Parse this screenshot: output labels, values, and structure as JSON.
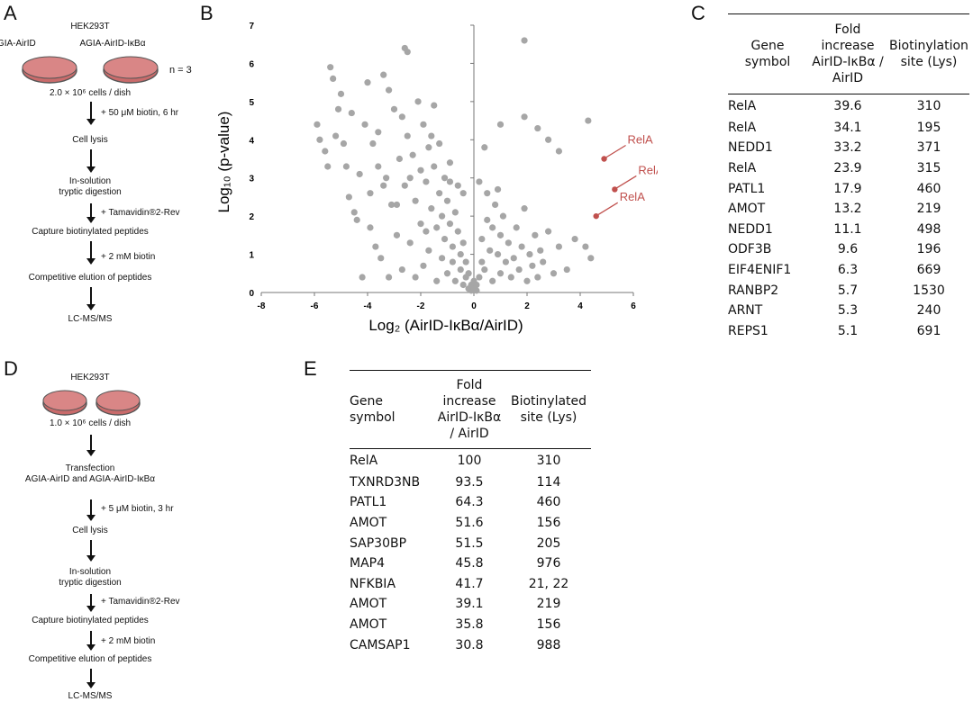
{
  "panels": {
    "a": "A",
    "b": "B",
    "c": "C",
    "d": "D",
    "e": "E"
  },
  "panel_a": {
    "cell_line": "HEK293T",
    "dish_label_1": "AGIA-AirID",
    "dish_label_2": "AGIA-AirID-IκBα",
    "replicates": "n = 3",
    "cells": "2.0 × 10⁶ cells / dish",
    "step_biotin": "+ 50 μM biotin, 6 hr",
    "lysis": "Cell lysis",
    "digestion": "In-solution\ntryptic digestion",
    "step_tamavidin": "+ Tamavidin®2-Rev",
    "capture": "Capture biotinylated peptides",
    "step_biotin2": "+ 2 mM biotin",
    "elution": "Competitive elution of peptides",
    "lcms": "LC-MS/MS"
  },
  "panel_d": {
    "cell_line": "HEK293T",
    "cells": "1.0 × 10⁶ cells / dish",
    "transfection": "Transfection\nAGIA-AirID and AGIA-AirID-IκBα",
    "step_biotin": "+ 5 μM biotin, 3 hr",
    "lysis": "Cell lysis",
    "digestion": "In-solution\ntryptic digestion",
    "step_tamavidin": "+ Tamavidin®2-Rev",
    "capture": "Capture biotinylated peptides",
    "step_biotin2": "+ 2 mM biotin",
    "elution": "Competitive elution of peptides",
    "lcms": "LC-MS/MS"
  },
  "chart_data": {
    "type": "scatter",
    "xlabel": "Log₂ (AirID-IκBα/AirID)",
    "ylabel": "Log₁₀ (p-value)",
    "xlim": [
      -8,
      6
    ],
    "ylim": [
      0,
      7
    ],
    "xticks": [
      -8,
      -6,
      -4,
      -2,
      0,
      2,
      4,
      6
    ],
    "yticks": [
      0,
      1,
      2,
      3,
      4,
      5,
      6,
      7
    ],
    "annotations": [
      {
        "label": "RelA",
        "x": 4.9,
        "y": 3.5
      },
      {
        "label": "RelA",
        "x": 5.3,
        "y": 2.7
      },
      {
        "label": "RelA",
        "x": 4.6,
        "y": 2.0
      }
    ],
    "points": [
      [
        -5.9,
        4.4
      ],
      [
        -5.8,
        4.0
      ],
      [
        -5.6,
        3.7
      ],
      [
        -5.5,
        3.3
      ],
      [
        -5.4,
        5.9
      ],
      [
        -5.3,
        5.6
      ],
      [
        -5.2,
        4.1
      ],
      [
        -5.0,
        5.2
      ],
      [
        -4.9,
        3.9
      ],
      [
        -4.6,
        4.7
      ],
      [
        -4.5,
        2.1
      ],
      [
        -4.4,
        1.9
      ],
      [
        -4.3,
        3.1
      ],
      [
        -4.2,
        0.4
      ],
      [
        -4.1,
        4.4
      ],
      [
        -4.0,
        5.5
      ],
      [
        -3.9,
        2.6
      ],
      [
        -3.8,
        3.9
      ],
      [
        -3.7,
        1.2
      ],
      [
        -3.6,
        4.2
      ],
      [
        -3.5,
        0.9
      ],
      [
        -3.4,
        5.7
      ],
      [
        -3.3,
        3.0
      ],
      [
        -3.2,
        0.4
      ],
      [
        -3.1,
        2.3
      ],
      [
        -3.0,
        4.8
      ],
      [
        -2.9,
        1.5
      ],
      [
        -2.8,
        3.5
      ],
      [
        -2.7,
        0.6
      ],
      [
        -2.6,
        2.8
      ],
      [
        -2.5,
        6.3
      ],
      [
        -2.5,
        4.1
      ],
      [
        -2.4,
        1.3
      ],
      [
        -2.3,
        3.6
      ],
      [
        -2.2,
        0.4
      ],
      [
        -2.2,
        2.4
      ],
      [
        -2.1,
        5.0
      ],
      [
        -2.0,
        3.2
      ],
      [
        -2.0,
        1.8
      ],
      [
        -1.9,
        4.4
      ],
      [
        -1.9,
        0.7
      ],
      [
        -1.8,
        2.9
      ],
      [
        -1.7,
        3.8
      ],
      [
        -1.7,
        1.1
      ],
      [
        -1.6,
        2.2
      ],
      [
        -1.5,
        4.9
      ],
      [
        -1.5,
        3.3
      ],
      [
        -1.4,
        0.3
      ],
      [
        -1.4,
        1.7
      ],
      [
        -1.3,
        2.6
      ],
      [
        -1.3,
        3.9
      ],
      [
        -1.2,
        0.9
      ],
      [
        -1.2,
        2.0
      ],
      [
        -1.1,
        3.0
      ],
      [
        -1.1,
        1.4
      ],
      [
        -1.0,
        0.5
      ],
      [
        -1.0,
        2.4
      ],
      [
        -0.9,
        1.8
      ],
      [
        -0.9,
        3.4
      ],
      [
        -0.8,
        0.8
      ],
      [
        -0.8,
        1.2
      ],
      [
        -0.7,
        2.1
      ],
      [
        -0.7,
        0.3
      ],
      [
        -0.6,
        1.6
      ],
      [
        -0.6,
        2.8
      ],
      [
        -0.5,
        0.6
      ],
      [
        -0.5,
        1.0
      ],
      [
        -0.4,
        0.2
      ],
      [
        -0.4,
        1.3
      ],
      [
        -0.3,
        0.4
      ],
      [
        -0.3,
        0.8
      ],
      [
        -0.2,
        0.1
      ],
      [
        -0.2,
        0.5
      ],
      [
        -0.1,
        0.2
      ],
      [
        -0.1,
        0.05
      ],
      [
        0.0,
        0.1
      ],
      [
        0.0,
        0.3
      ],
      [
        0.1,
        0.05
      ],
      [
        0.1,
        0.2
      ],
      [
        0.2,
        0.4
      ],
      [
        0.3,
        0.8
      ],
      [
        0.3,
        1.4
      ],
      [
        0.4,
        0.6
      ],
      [
        0.5,
        1.9
      ],
      [
        0.5,
        2.6
      ],
      [
        0.6,
        1.1
      ],
      [
        0.7,
        0.3
      ],
      [
        0.7,
        1.7
      ],
      [
        0.8,
        2.3
      ],
      [
        0.9,
        1.0
      ],
      [
        1.0,
        0.5
      ],
      [
        1.0,
        1.5
      ],
      [
        1.1,
        2.0
      ],
      [
        1.2,
        0.8
      ],
      [
        1.3,
        1.3
      ],
      [
        1.4,
        0.4
      ],
      [
        1.5,
        0.9
      ],
      [
        1.6,
        1.7
      ],
      [
        1.7,
        0.6
      ],
      [
        1.8,
        1.2
      ],
      [
        1.9,
        2.2
      ],
      [
        2.0,
        0.3
      ],
      [
        2.1,
        1.0
      ],
      [
        2.2,
        0.7
      ],
      [
        2.3,
        1.5
      ],
      [
        2.4,
        0.4
      ],
      [
        2.5,
        1.1
      ],
      [
        2.6,
        0.8
      ],
      [
        2.8,
        1.6
      ],
      [
        3.0,
        0.5
      ],
      [
        3.2,
        1.2
      ],
      [
        3.5,
        0.6
      ],
      [
        3.8,
        1.4
      ],
      [
        4.2,
        1.2
      ],
      [
        4.4,
        0.9
      ],
      [
        1.9,
        6.6
      ],
      [
        1.0,
        4.4
      ],
      [
        1.9,
        4.6
      ],
      [
        2.4,
        4.3
      ],
      [
        2.8,
        4.0
      ],
      [
        3.2,
        3.7
      ],
      [
        4.3,
        4.5
      ],
      [
        0.4,
        3.8
      ],
      [
        0.2,
        2.9
      ],
      [
        0.9,
        2.7
      ],
      [
        -2.6,
        6.4
      ],
      [
        -3.2,
        5.3
      ],
      [
        -5.1,
        4.8
      ],
      [
        -4.8,
        3.3
      ],
      [
        -3.9,
        1.7
      ],
      [
        -4.7,
        2.5
      ],
      [
        -3.6,
        3.3
      ],
      [
        -2.9,
        2.3
      ],
      [
        -2.4,
        3.0
      ],
      [
        -1.8,
        1.6
      ],
      [
        -2.7,
        4.6
      ],
      [
        -3.4,
        2.8
      ],
      [
        -1.6,
        4.1
      ],
      [
        -0.9,
        2.9
      ],
      [
        -0.4,
        2.6
      ]
    ]
  },
  "table_c": {
    "headers": {
      "gene": "Gene\nsymbol",
      "fold": "Fold\nincrease\nAirID-IκBα /\nAirID",
      "site": "Biotinylation\nsite (Lys)"
    },
    "rows": [
      {
        "gene": "RelA",
        "fold": "39.6",
        "site": "310"
      },
      {
        "gene": "RelA",
        "fold": "34.1",
        "site": "195"
      },
      {
        "gene": "NEDD1",
        "fold": "33.2",
        "site": "371"
      },
      {
        "gene": "RelA",
        "fold": "23.9",
        "site": "315"
      },
      {
        "gene": "PATL1",
        "fold": "17.9",
        "site": "460"
      },
      {
        "gene": "AMOT",
        "fold": "13.2",
        "site": "219"
      },
      {
        "gene": "NEDD1",
        "fold": "11.1",
        "site": "498"
      },
      {
        "gene": "ODF3B",
        "fold": "9.6",
        "site": "196"
      },
      {
        "gene": "EIF4ENIF1",
        "fold": "6.3",
        "site": "669"
      },
      {
        "gene": "RANBP2",
        "fold": "5.7",
        "site": "1530"
      },
      {
        "gene": "ARNT",
        "fold": "5.3",
        "site": "240"
      },
      {
        "gene": "REPS1",
        "fold": "5.1",
        "site": "691"
      }
    ]
  },
  "table_e": {
    "headers": {
      "gene": "Gene\nsymbol",
      "fold": "Fold\nincrease\nAirID-IκBα\n/ AirID",
      "site": "Biotinylated\nsite (Lys)"
    },
    "rows": [
      {
        "gene": "RelA",
        "fold": "100",
        "site": "310"
      },
      {
        "gene": "TXNRD3NB",
        "fold": "93.5",
        "site": "114"
      },
      {
        "gene": "PATL1",
        "fold": "64.3",
        "site": "460"
      },
      {
        "gene": "AMOT",
        "fold": "51.6",
        "site": "156"
      },
      {
        "gene": "SAP30BP",
        "fold": "51.5",
        "site": "205"
      },
      {
        "gene": "MAP4",
        "fold": "45.8",
        "site": "976"
      },
      {
        "gene": "NFKBIA",
        "fold": "41.7",
        "site": "21, 22"
      },
      {
        "gene": "AMOT",
        "fold": "39.1",
        "site": "219"
      },
      {
        "gene": "AMOT",
        "fold": "35.8",
        "site": "156"
      },
      {
        "gene": "CAMSAP1",
        "fold": "30.8",
        "site": "988"
      }
    ]
  },
  "colors": {
    "point": "#a6a6a6",
    "accent": "#c0504d",
    "dish_fill": "#c96b6b",
    "dish_rim": "#555555"
  }
}
